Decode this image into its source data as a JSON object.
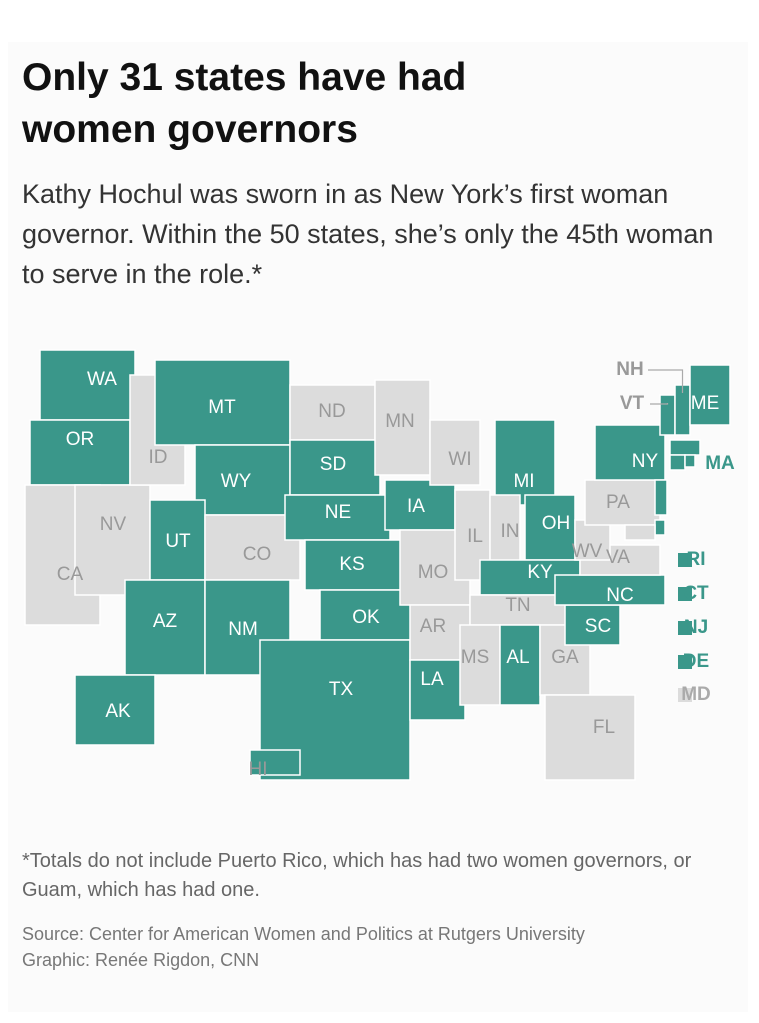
{
  "header": {
    "title": "Only 31 states have had women governors",
    "subtitle": "Kathy Hochul was sworn in as New York’s first woman governor. Within the 50 states, she’s only the 45th woman to serve in the role.*"
  },
  "map": {
    "colors": {
      "had_woman_governor": "#3a978a",
      "never": "#dcdcdc"
    },
    "states": [
      {
        "abbr": "WA",
        "had_woman_governor": true
      },
      {
        "abbr": "OR",
        "had_woman_governor": true
      },
      {
        "abbr": "CA",
        "had_woman_governor": false
      },
      {
        "abbr": "NV",
        "had_woman_governor": false
      },
      {
        "abbr": "ID",
        "had_woman_governor": false
      },
      {
        "abbr": "MT",
        "had_woman_governor": true
      },
      {
        "abbr": "WY",
        "had_woman_governor": true
      },
      {
        "abbr": "UT",
        "had_woman_governor": true
      },
      {
        "abbr": "CO",
        "had_woman_governor": false
      },
      {
        "abbr": "AZ",
        "had_woman_governor": true
      },
      {
        "abbr": "NM",
        "had_woman_governor": true
      },
      {
        "abbr": "ND",
        "had_woman_governor": false
      },
      {
        "abbr": "SD",
        "had_woman_governor": true
      },
      {
        "abbr": "NE",
        "had_woman_governor": true
      },
      {
        "abbr": "KS",
        "had_woman_governor": true
      },
      {
        "abbr": "OK",
        "had_woman_governor": true
      },
      {
        "abbr": "TX",
        "had_woman_governor": true
      },
      {
        "abbr": "MN",
        "had_woman_governor": false
      },
      {
        "abbr": "IA",
        "had_woman_governor": true
      },
      {
        "abbr": "MO",
        "had_woman_governor": false
      },
      {
        "abbr": "AR",
        "had_woman_governor": false
      },
      {
        "abbr": "LA",
        "had_woman_governor": true
      },
      {
        "abbr": "WI",
        "had_woman_governor": false
      },
      {
        "abbr": "IL",
        "had_woman_governor": false
      },
      {
        "abbr": "MI",
        "had_woman_governor": true
      },
      {
        "abbr": "IN",
        "had_woman_governor": false
      },
      {
        "abbr": "OH",
        "had_woman_governor": true
      },
      {
        "abbr": "KY",
        "had_woman_governor": true
      },
      {
        "abbr": "TN",
        "had_woman_governor": false
      },
      {
        "abbr": "MS",
        "had_woman_governor": false
      },
      {
        "abbr": "AL",
        "had_woman_governor": true
      },
      {
        "abbr": "GA",
        "had_woman_governor": false
      },
      {
        "abbr": "FL",
        "had_woman_governor": false
      },
      {
        "abbr": "SC",
        "had_woman_governor": true
      },
      {
        "abbr": "NC",
        "had_woman_governor": true
      },
      {
        "abbr": "VA",
        "had_woman_governor": false
      },
      {
        "abbr": "WV",
        "had_woman_governor": false
      },
      {
        "abbr": "PA",
        "had_woman_governor": false
      },
      {
        "abbr": "NY",
        "had_woman_governor": true
      },
      {
        "abbr": "VT",
        "had_woman_governor": true
      },
      {
        "abbr": "NH",
        "had_woman_governor": true
      },
      {
        "abbr": "ME",
        "had_woman_governor": true
      },
      {
        "abbr": "MA",
        "had_woman_governor": true
      },
      {
        "abbr": "CT",
        "had_woman_governor": true
      },
      {
        "abbr": "RI",
        "had_woman_governor": true
      },
      {
        "abbr": "NJ",
        "had_woman_governor": true
      },
      {
        "abbr": "DE",
        "had_woman_governor": true
      },
      {
        "abbr": "MD",
        "had_woman_governor": false
      },
      {
        "abbr": "AK",
        "had_woman_governor": true
      },
      {
        "abbr": "HI",
        "had_woman_governor": true
      }
    ]
  },
  "footer": {
    "note": "*Totals do not include Puerto Rico, which has had two women governors, or Guam, which has had one.",
    "source": "Source: Center for American Women and Politics at Rutgers University",
    "credit": "Graphic: Renée Rigdon, CNN"
  }
}
